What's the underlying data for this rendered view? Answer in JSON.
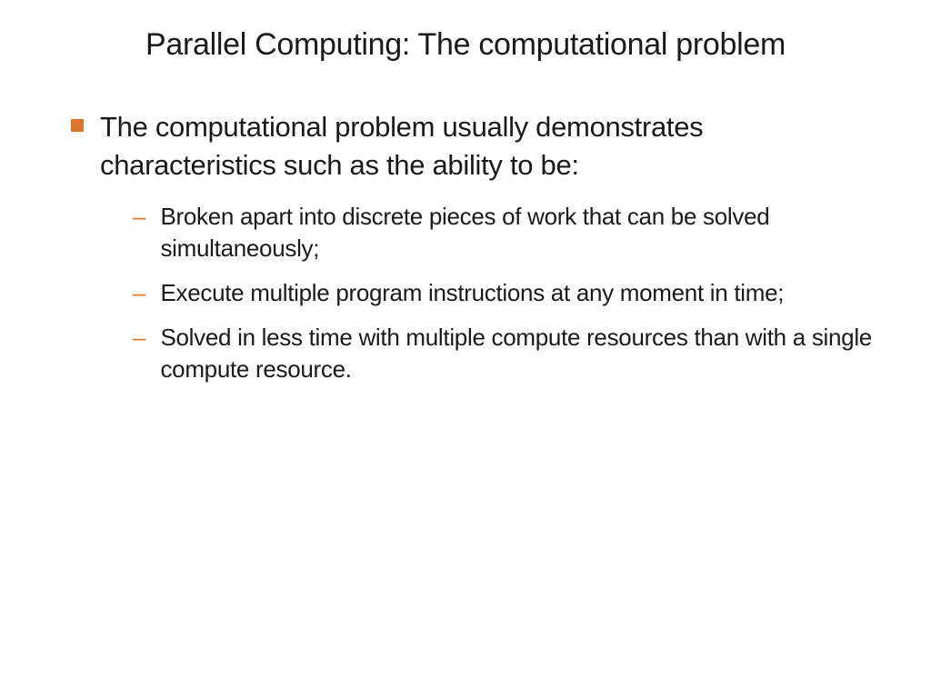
{
  "slide": {
    "title": "Parallel Computing: The computational problem",
    "main_bullet": "The computational problem usually demonstrates characteristics such as the ability to be:",
    "sub_bullets": [
      "Broken apart into discrete pieces of work that can be solved simultaneously;",
      "Execute multiple program instructions at any moment in time;",
      "Solved in less time with multiple compute resources than with a single compute resource."
    ]
  },
  "styling": {
    "background_color": "#ffffff",
    "text_color": "#1a1a1a",
    "accent_color": "#d9782d",
    "title_fontsize": 34,
    "main_bullet_fontsize": 31,
    "sub_bullet_fontsize": 26,
    "font_family": "Arial, Helvetica, sans-serif",
    "square_bullet_size": 14,
    "dash_char": "–"
  }
}
